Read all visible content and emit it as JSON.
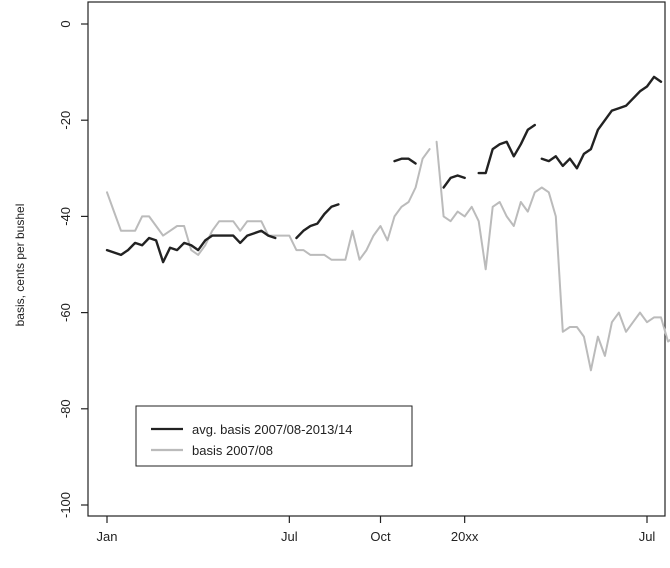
{
  "chart_data": {
    "type": "line",
    "xlabel": "",
    "ylabel": "basis, cents per bushel",
    "ylim": [
      -105,
      5
    ],
    "y_ticks": [
      0,
      -20,
      -40,
      -60,
      -80,
      -100
    ],
    "y_tick_labels": [
      "0",
      "-20",
      "-40",
      "-60",
      "-80",
      "-100"
    ],
    "x_ticks": [
      {
        "label": "Jan",
        "week": 0
      },
      {
        "label": "Jul",
        "week": 26
      },
      {
        "label": "Oct",
        "week": 39
      },
      {
        "label": "20xx",
        "week": 51
      },
      {
        "label": "Jul",
        "week": 77
      }
    ],
    "grid": false,
    "legend_position": "bottom-left",
    "series": [
      {
        "name": "avg. basis 2007/08-2013/14",
        "color": "#222222",
        "segments": [
          [
            [
              0,
              -47
            ],
            [
              1,
              -47.5
            ],
            [
              2,
              -48
            ],
            [
              3,
              -47
            ],
            [
              4,
              -45.5
            ],
            [
              5,
              -46
            ],
            [
              6,
              -44.5
            ],
            [
              7,
              -45
            ],
            [
              8,
              -49.5
            ],
            [
              9,
              -46.5
            ],
            [
              10,
              -47
            ],
            [
              11,
              -45.5
            ],
            [
              12,
              -46
            ],
            [
              13,
              -47
            ],
            [
              14,
              -45
            ],
            [
              15,
              -44
            ],
            [
              16,
              -44
            ],
            [
              17,
              -44
            ],
            [
              18,
              -44
            ],
            [
              19,
              -45.5
            ],
            [
              20,
              -44
            ],
            [
              21,
              -43.5
            ],
            [
              22,
              -43
            ],
            [
              23,
              -44
            ],
            [
              24,
              -44.5
            ]
          ],
          [
            [
              27,
              -44.5
            ],
            [
              28,
              -43
            ],
            [
              29,
              -42
            ],
            [
              30,
              -41.5
            ],
            [
              31,
              -39.5
            ],
            [
              32,
              -38
            ],
            [
              33,
              -37.5
            ]
          ],
          [
            [
              41,
              -28.5
            ],
            [
              42,
              -28
            ],
            [
              43,
              -28
            ],
            [
              44,
              -29
            ]
          ],
          [
            [
              48,
              -34
            ],
            [
              49,
              -32
            ],
            [
              50,
              -31.5
            ],
            [
              51,
              -32
            ]
          ],
          [
            [
              53,
              -31
            ],
            [
              54,
              -31
            ],
            [
              55,
              -26
            ],
            [
              56,
              -25
            ],
            [
              57,
              -24.5
            ],
            [
              58,
              -27.5
            ],
            [
              59,
              -25
            ],
            [
              60,
              -22
            ],
            [
              61,
              -21
            ]
          ],
          [
            [
              62,
              -28
            ],
            [
              63,
              -28.5
            ],
            [
              64,
              -27.5
            ],
            [
              65,
              -29.5
            ],
            [
              66,
              -28
            ],
            [
              67,
              -30
            ],
            [
              68,
              -27
            ],
            [
              69,
              -26
            ],
            [
              70,
              -22
            ],
            [
              71,
              -20
            ],
            [
              72,
              -18
            ],
            [
              73,
              -17.5
            ],
            [
              74,
              -17
            ],
            [
              75,
              -15.5
            ],
            [
              76,
              -14
            ],
            [
              77,
              -13
            ],
            [
              78,
              -11
            ],
            [
              79,
              -12
            ]
          ]
        ]
      },
      {
        "name": "basis 2007/08",
        "color": "#bbbbbb",
        "segments": [
          [
            [
              0,
              -35
            ],
            [
              1,
              -39
            ],
            [
              2,
              -43
            ],
            [
              3,
              -43
            ],
            [
              4,
              -43
            ],
            [
              5,
              -40
            ],
            [
              6,
              -40
            ],
            [
              7,
              -42
            ],
            [
              8,
              -44
            ],
            [
              9,
              -43
            ],
            [
              10,
              -42
            ],
            [
              11,
              -42
            ],
            [
              12,
              -47
            ],
            [
              13,
              -48
            ],
            [
              14,
              -46
            ],
            [
              15,
              -43
            ],
            [
              16,
              -41
            ],
            [
              17,
              -41
            ],
            [
              18,
              -41
            ],
            [
              19,
              -43
            ],
            [
              20,
              -41
            ],
            [
              21,
              -41
            ],
            [
              22,
              -41
            ],
            [
              23,
              -44
            ],
            [
              24,
              -44
            ],
            [
              25,
              -44
            ],
            [
              26,
              -44
            ],
            [
              27,
              -47
            ],
            [
              28,
              -47
            ],
            [
              29,
              -48
            ],
            [
              30,
              -48
            ],
            [
              31,
              -48
            ],
            [
              32,
              -49
            ],
            [
              33,
              -49
            ],
            [
              34,
              -49
            ],
            [
              35,
              -43
            ],
            [
              36,
              -49
            ],
            [
              37,
              -47
            ],
            [
              38,
              -44
            ],
            [
              39,
              -42
            ],
            [
              40,
              -45
            ],
            [
              41,
              -40
            ],
            [
              42,
              -38
            ],
            [
              43,
              -37
            ],
            [
              44,
              -34
            ],
            [
              45,
              -28
            ],
            [
              46,
              -26
            ]
          ],
          [
            [
              47,
              -24.5
            ],
            [
              48,
              -40
            ],
            [
              49,
              -41
            ],
            [
              50,
              -39
            ],
            [
              51,
              -40
            ],
            [
              52,
              -38
            ],
            [
              53,
              -41
            ],
            [
              54,
              -51
            ],
            [
              55,
              -38
            ],
            [
              56,
              -37
            ],
            [
              57,
              -40
            ],
            [
              58,
              -42
            ],
            [
              59,
              -37
            ],
            [
              60,
              -39
            ],
            [
              61,
              -35
            ],
            [
              62,
              -34
            ],
            [
              63,
              -35
            ],
            [
              64,
              -40
            ],
            [
              65,
              -64
            ],
            [
              66,
              -63
            ],
            [
              67,
              -63
            ],
            [
              68,
              -65
            ],
            [
              69,
              -72
            ],
            [
              70,
              -65
            ],
            [
              71,
              -69
            ],
            [
              72,
              -62
            ],
            [
              73,
              -60
            ],
            [
              74,
              -64
            ],
            [
              75,
              -62
            ],
            [
              76,
              -60
            ],
            [
              77,
              -62
            ],
            [
              78,
              -61
            ],
            [
              79,
              -61
            ],
            [
              80,
              -66
            ],
            [
              81,
              -65
            ],
            [
              82,
              -59
            ]
          ]
        ]
      }
    ]
  }
}
